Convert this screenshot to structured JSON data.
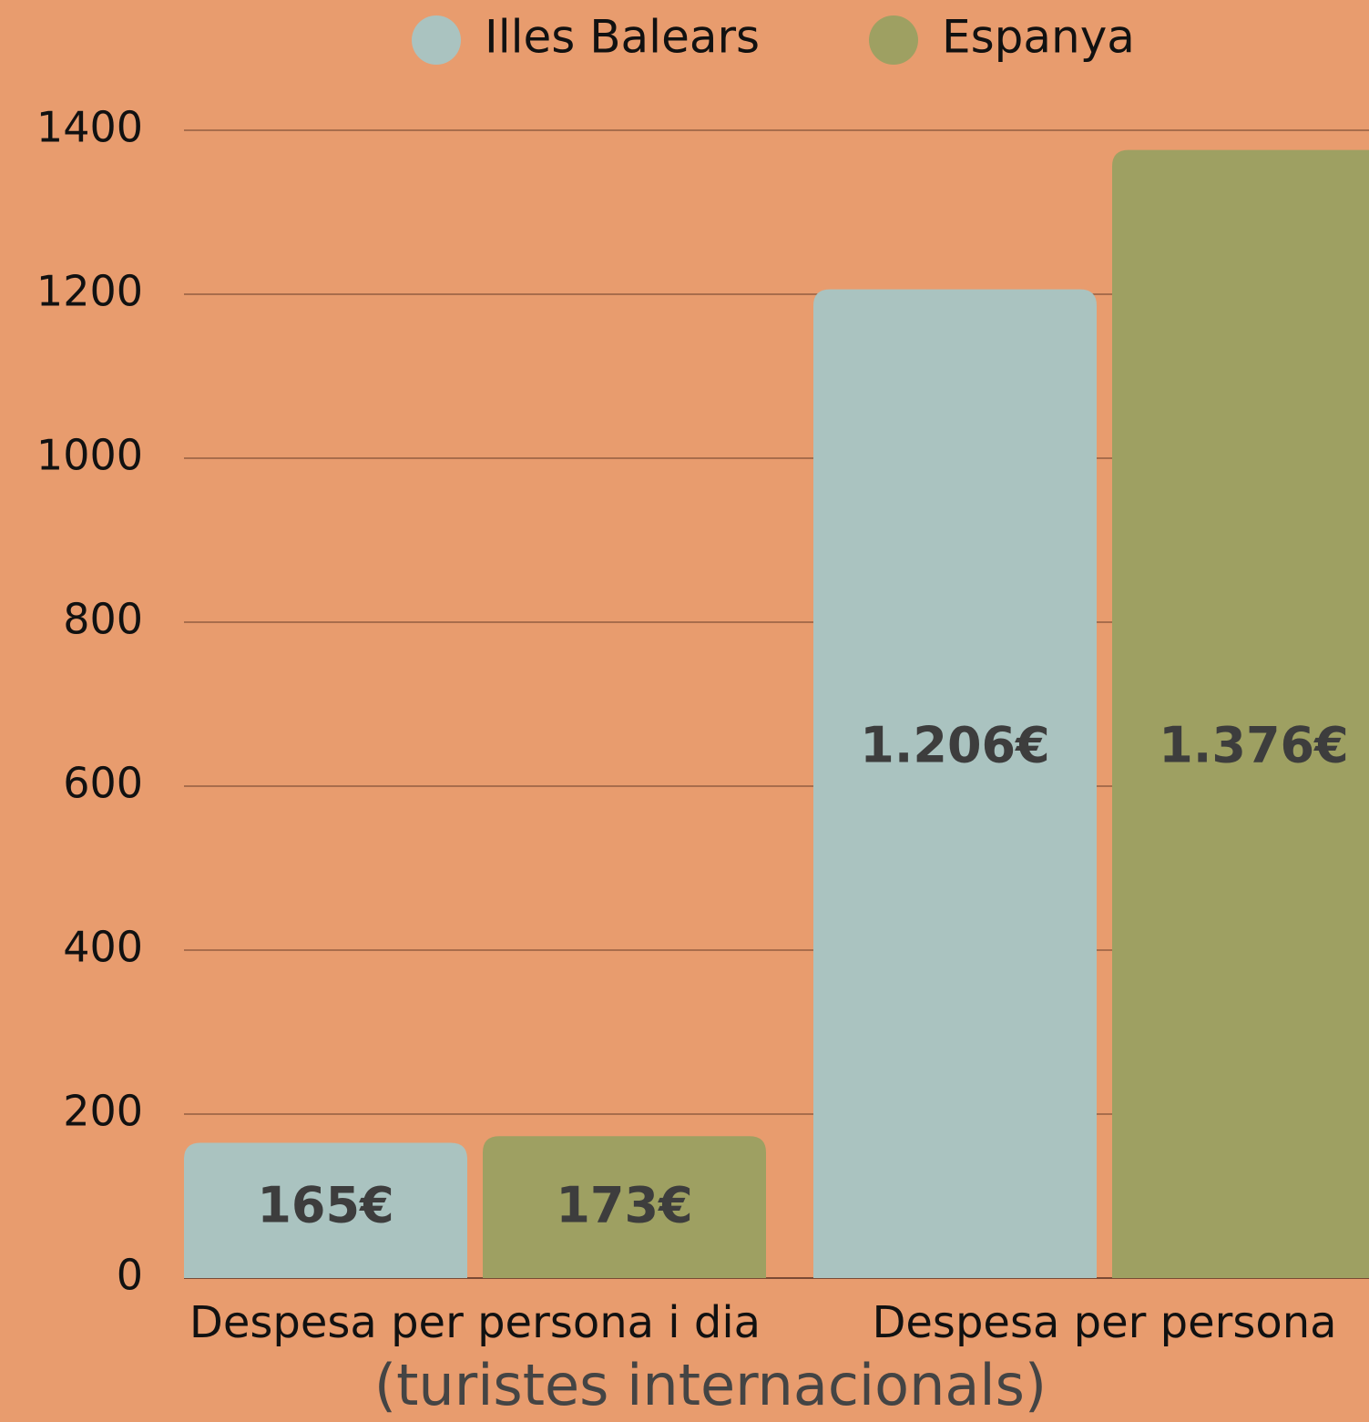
{
  "chart_data": {
    "type": "bar",
    "categories": [
      "Despesa per persona i dia",
      "Despesa per persona"
    ],
    "series": [
      {
        "name": "Illes Balears",
        "color": "#aac3c0",
        "values": [
          165,
          1206
        ],
        "value_labels": [
          "165€",
          "1.206€"
        ]
      },
      {
        "name": "Espanya",
        "color": "#9ea062",
        "values": [
          173,
          1376
        ],
        "value_labels": [
          "173€",
          "1.376€"
        ]
      }
    ],
    "x_label": "(turistes internacionals)",
    "ylim": [
      0,
      1400
    ],
    "yticks": [
      0,
      200,
      400,
      600,
      800,
      1000,
      1200,
      1400
    ],
    "grid": true,
    "legend": "top"
  }
}
